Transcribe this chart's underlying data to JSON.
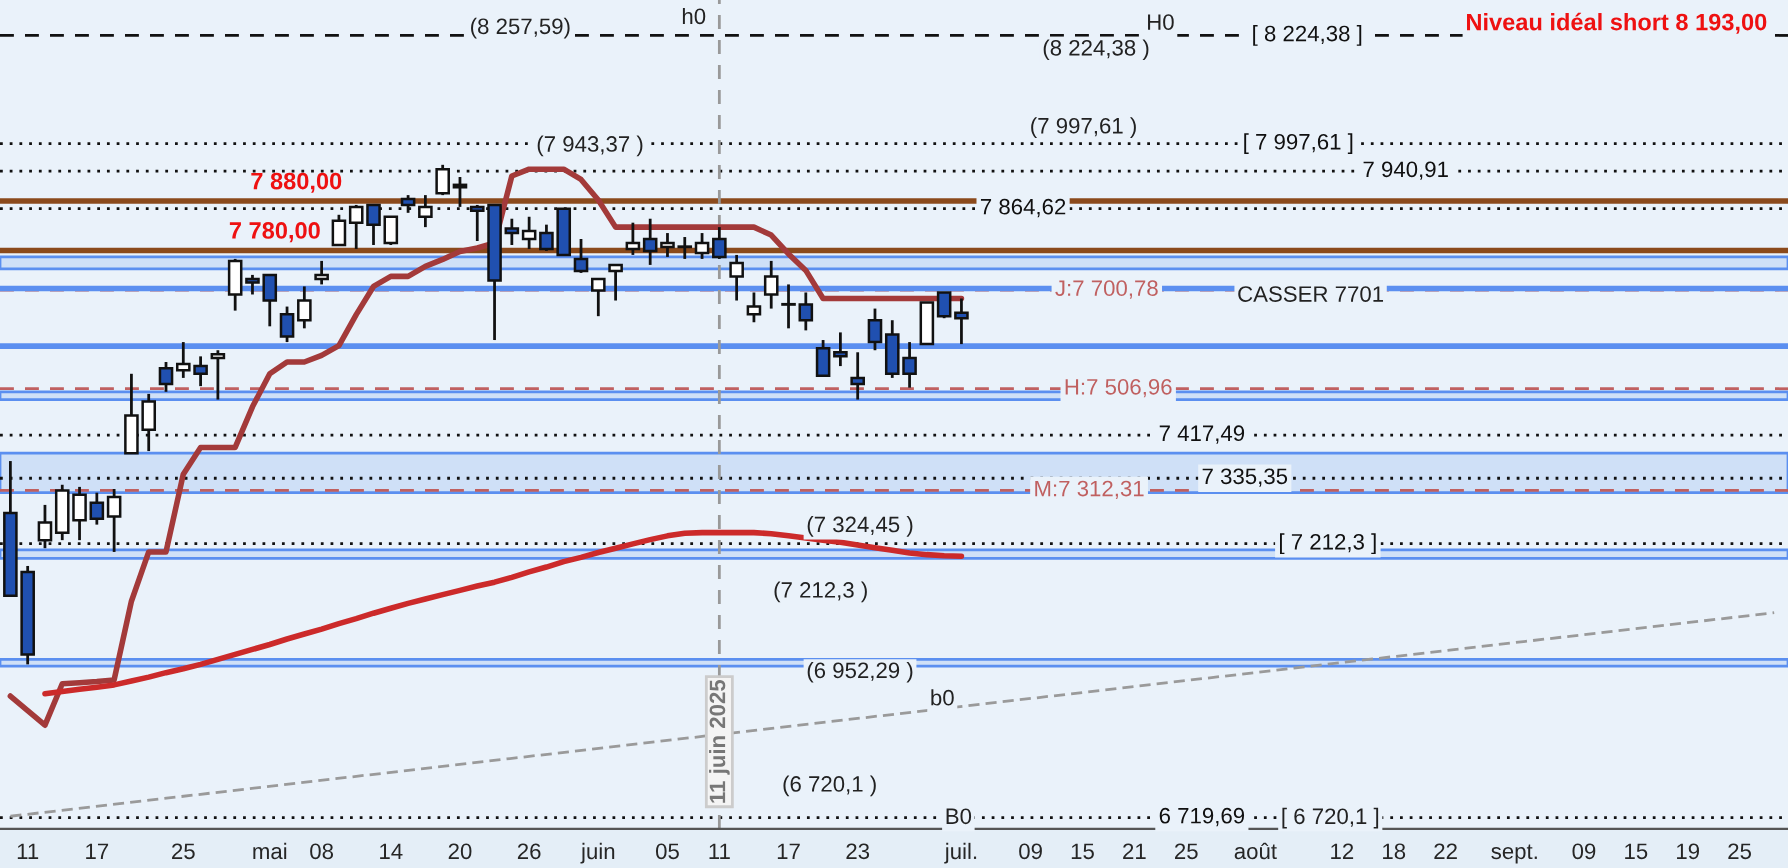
{
  "chart_data": {
    "type": "candlestick",
    "log": true,
    "grid": false,
    "tick_labels": "x",
    "ylim": [
      6700,
      8300
    ],
    "categories": [
      null,
      "11",
      null,
      null,
      null,
      "17",
      null,
      null,
      null,
      null,
      "25",
      null,
      null,
      null,
      null,
      "mai",
      null,
      null,
      "08",
      null,
      null,
      null,
      "14",
      null,
      null,
      null,
      "20",
      null,
      null,
      null,
      "26",
      null,
      null,
      null,
      "juin",
      null,
      null,
      null,
      "05",
      null,
      null,
      "11",
      null,
      null,
      null,
      "17",
      null,
      null,
      null,
      "23",
      null,
      null,
      null,
      null,
      null,
      "juil.",
      null,
      null,
      null,
      "09",
      null,
      null,
      "15",
      null,
      null,
      "21",
      null,
      null,
      "25",
      null,
      null,
      null,
      "août",
      null,
      null,
      null,
      null,
      "12",
      null,
      null,
      "18",
      null,
      null,
      "22",
      null,
      null,
      null,
      "sept.",
      null,
      null,
      null,
      "09",
      null,
      null,
      "15",
      null,
      null,
      "19",
      null,
      null,
      "25",
      null,
      null
    ],
    "ohlc": [
      [
        7270,
        7368,
        7116,
        7116
      ],
      [
        7160,
        7171,
        6991,
        7009
      ],
      [
        7219,
        7285,
        7204,
        7252
      ],
      [
        7233,
        7323,
        7219,
        7312
      ],
      [
        7256,
        7319,
        7219,
        7304
      ],
      [
        7289,
        7308,
        7248,
        7259
      ],
      [
        7263,
        7315,
        7197,
        7300
      ],
      [
        7383,
        7536,
        7383,
        7455
      ],
      [
        7428,
        7497,
        7387,
        7482
      ],
      [
        7547,
        7559,
        7501,
        7516
      ],
      [
        7543,
        7598,
        7528,
        7555
      ],
      [
        7551,
        7570,
        7512,
        7536
      ],
      [
        7567,
        7582,
        7486,
        7574
      ],
      [
        7692,
        7763,
        7660,
        7759
      ],
      [
        7723,
        7731,
        7692,
        7716
      ],
      [
        7731,
        7731,
        7629,
        7680
      ],
      [
        7653,
        7668,
        7598,
        7609
      ],
      [
        7641,
        7708,
        7625,
        7680
      ],
      [
        7723,
        7759,
        7712,
        7731
      ],
      [
        7791,
        7852,
        7791,
        7840
      ],
      [
        7836,
        7872,
        7783,
        7868
      ],
      [
        7872,
        7872,
        7791,
        7832
      ],
      [
        7795,
        7848,
        7791,
        7848
      ],
      [
        7884,
        7892,
        7856,
        7872
      ],
      [
        7848,
        7892,
        7827,
        7868
      ],
      [
        7896,
        7954,
        7892,
        7945
      ],
      [
        7913,
        7929,
        7868,
        7908
      ],
      [
        7868,
        7872,
        7799,
        7860
      ],
      [
        7872,
        7872,
        7602,
        7720
      ],
      [
        7824,
        7844,
        7791,
        7815
      ],
      [
        7803,
        7848,
        7783,
        7819
      ],
      [
        7815,
        7832,
        7779,
        7783
      ],
      [
        7864,
        7864,
        7771,
        7771
      ],
      [
        7763,
        7803,
        7735,
        7739
      ],
      [
        7700,
        7723,
        7649,
        7723
      ],
      [
        7739,
        7751,
        7680,
        7751
      ],
      [
        7783,
        7836,
        7771,
        7795
      ],
      [
        7803,
        7844,
        7751,
        7779
      ],
      [
        7787,
        7815,
        7767,
        7795
      ],
      [
        7787,
        7807,
        7763,
        7787
      ],
      [
        7775,
        7815,
        7763,
        7795
      ],
      [
        7803,
        7827,
        7763,
        7767
      ],
      [
        7728,
        7771,
        7680,
        7755
      ],
      [
        7653,
        7696,
        7637,
        7668
      ],
      [
        7692,
        7759,
        7664,
        7728
      ],
      [
        7672,
        7712,
        7625,
        7672
      ],
      [
        7672,
        7696,
        7621,
        7641
      ],
      [
        7586,
        7602,
        7532,
        7532
      ],
      [
        7578,
        7617,
        7551,
        7570
      ],
      [
        7528,
        7578,
        7486,
        7516
      ],
      [
        7641,
        7664,
        7582,
        7598
      ],
      [
        7613,
        7641,
        7528,
        7536
      ],
      [
        7567,
        7598,
        7509,
        7536
      ],
      [
        7594,
        7676,
        7594,
        7676
      ],
      [
        7696,
        7696,
        7645,
        7649
      ],
      [
        7656,
        7684,
        7594,
        7645
      ],
      null,
      null,
      null,
      null,
      null,
      null,
      null,
      null,
      null,
      null,
      null,
      null,
      null,
      null,
      null,
      null,
      null,
      null,
      null,
      null,
      null,
      null,
      null,
      null,
      null,
      null,
      null,
      null,
      null,
      null,
      null,
      null,
      null,
      null,
      null,
      null,
      null,
      null,
      null,
      null,
      null,
      null,
      null,
      null,
      null,
      null,
      null
    ],
    "colors": [
      "#2050b0",
      "#2050b0",
      "#ffffff",
      "#ffffff",
      "#ffffff",
      "#2050b0",
      "#ffffff",
      "#ffffff",
      "#ffffff",
      "#2050b0",
      "#ffffff",
      "#2050b0",
      "#ffffff",
      "#ffffff",
      "#2050b0",
      "#2050b0",
      "#2050b0",
      "#ffffff",
      "#ffffff",
      "#ffffff",
      "#ffffff",
      "#2050b0",
      "#ffffff",
      "#2050b0",
      "#ffffff",
      "#ffffff",
      "#2050b0",
      "#2050b0",
      "#2050b0",
      "#2050b0",
      "#ffffff",
      "#2050b0",
      "#2050b0",
      "#2050b0",
      "#ffffff",
      "#ffffff",
      "#ffffff",
      "#2050b0",
      "#ffffff",
      "#2050b0",
      "#ffffff",
      "#2050b0",
      "#ffffff",
      "#ffffff",
      "#ffffff",
      "#2050b0",
      "#2050b0",
      "#2050b0",
      "#2050b0",
      "#2050b0",
      "#2050b0",
      "#2050b0",
      "#2050b0",
      "#ffffff",
      "#2050b0",
      "#2050b0",
      null,
      null,
      null,
      null,
      null,
      null,
      null,
      null,
      null,
      null,
      null,
      null,
      null,
      null,
      null,
      null,
      null,
      null,
      null,
      null,
      null,
      null,
      null,
      null,
      null,
      null,
      null,
      null,
      null,
      null,
      null,
      null,
      null,
      null,
      null,
      null,
      null,
      null,
      null,
      null,
      null,
      null,
      null,
      null,
      null,
      null,
      null
    ],
    "series": [
      {
        "type": "line",
        "color": "#a33a3a",
        "values": [
          6934,
          6908,
          6882,
          6956,
          6958,
          6960,
          6963,
          7106,
          7197,
          7197,
          7343,
          7394,
          7394,
          7394,
          7472,
          7536,
          7559,
          7559,
          7572,
          7591,
          7652,
          7708,
          7728,
          7728,
          7748,
          7762,
          7778,
          7785,
          7795,
          7931,
          7945,
          7945,
          7945,
          7924,
          7882,
          7827,
          7827,
          7827,
          7827,
          7827,
          7827,
          7827,
          7827,
          7827,
          7811,
          7773,
          7740,
          7684,
          7684,
          7684,
          7684,
          7684,
          7684,
          7684,
          7684,
          7684,
          null,
          null,
          null,
          null,
          null,
          null,
          null,
          null,
          null,
          null,
          null,
          null,
          null,
          null,
          null,
          null,
          null,
          null,
          null,
          null,
          null,
          null,
          null,
          null,
          null,
          null,
          null,
          null,
          null,
          null,
          null,
          null,
          null,
          null,
          null,
          null,
          null,
          null,
          null,
          null,
          null,
          null,
          null,
          null,
          null,
          null,
          null
        ]
      },
      {
        "type": "line",
        "color": "#cc2a2a",
        "values": [
          null,
          null,
          6938,
          6942,
          6946,
          6950,
          6954,
          6961,
          6968,
          6976,
          6983,
          6991,
          7000,
          7009,
          7018,
          7027,
          7037,
          7046,
          7055,
          7065,
          7074,
          7084,
          7093,
          7102,
          7110,
          7118,
          7126,
          7134,
          7141,
          7150,
          7160,
          7169,
          7179,
          7187,
          7196,
          7204,
          7212,
          7220,
          7227,
          7232,
          7233,
          7233,
          7233,
          7233,
          7231,
          7227,
          7223,
          7219,
          7215,
          7210,
          7205,
          7200,
          7195,
          7192,
          7190,
          7189,
          null,
          null,
          null,
          null,
          null,
          null,
          null,
          null,
          null,
          null,
          null,
          null,
          null,
          null,
          null,
          null,
          null,
          null,
          null,
          null,
          null,
          null,
          null,
          null,
          null,
          null,
          null,
          null,
          null,
          null,
          null,
          null,
          null,
          null,
          null,
          null,
          null,
          null,
          null,
          null,
          null,
          null,
          null,
          null,
          null,
          null,
          null
        ]
      },
      {
        "type": "line",
        "color": "#9a9a9a",
        "line_style": "dashed",
        "values": [
          6722,
          null,
          null,
          null,
          null,
          null,
          null,
          null,
          null,
          null,
          null,
          null,
          null,
          null,
          null,
          null,
          null,
          null,
          null,
          null,
          null,
          null,
          null,
          null,
          null,
          null,
          null,
          null,
          null,
          null,
          null,
          null,
          null,
          null,
          null,
          null,
          null,
          null,
          null,
          null,
          null,
          null,
          null,
          null,
          null,
          null,
          null,
          null,
          null,
          null,
          null,
          null,
          null,
          null,
          null,
          null,
          null,
          null,
          null,
          null,
          null,
          null,
          null,
          null,
          null,
          null,
          null,
          null,
          null,
          null,
          null,
          null,
          null,
          null,
          null,
          null,
          null,
          null,
          null,
          null,
          null,
          null,
          null,
          null,
          null,
          null,
          null,
          null,
          null,
          null,
          null,
          null,
          null,
          null,
          null,
          null,
          null,
          null,
          null,
          null,
          null,
          null,
          7085
        ]
      }
    ],
    "bands": [
      {
        "axis": "y",
        "from": 7743,
        "to": 7767,
        "color": "#cfe0f7"
      },
      {
        "axis": "y",
        "from": 7486,
        "to": 7501,
        "color": "#cfe0f7"
      },
      {
        "axis": "y",
        "from": 7308,
        "to": 7383,
        "color": "#cfe0f7"
      },
      {
        "axis": "y",
        "from": 7185,
        "to": 7201,
        "color": "#cfe0f7"
      },
      {
        "axis": "y",
        "from": 6988,
        "to": 7000,
        "color": "#cfe0f7"
      }
    ],
    "ref_lines": [
      {
        "axis": "y",
        "value": 8224.38,
        "label": "[ 8 224,38 ]",
        "color": "#111111",
        "line_style": "dashed"
      },
      {
        "axis": "y",
        "value": 7997.61,
        "label": "[ 7 997,61 ]",
        "color": "#111111",
        "line_style": "dotted"
      },
      {
        "axis": "y",
        "value": 7940.91,
        "label": "7 940,91",
        "color": "#111111",
        "line_style": "dotted"
      },
      {
        "axis": "y",
        "value": 7880.0,
        "label": "7 880,00",
        "color": "#8b4a1c",
        "line_style": "solid"
      },
      {
        "axis": "y",
        "value": 7864.62,
        "label": "7 864,62",
        "color": "#111111",
        "line_style": "dotted"
      },
      {
        "axis": "y",
        "value": 7780.0,
        "label": "7 780,00",
        "color": "#8b4a1c",
        "line_style": "solid"
      },
      {
        "axis": "y",
        "value": 7700.78,
        "label": "J:7 700,78",
        "color": "#c06060",
        "line_style": "dashed"
      },
      {
        "axis": "y",
        "value": 7506.96,
        "label": "H:7 506,96",
        "color": "#c06060",
        "line_style": "dashed"
      },
      {
        "axis": "y",
        "value": 7417.49,
        "label": "7 417,49",
        "color": "#111111",
        "line_style": "dotted"
      },
      {
        "axis": "y",
        "value": 7335.35,
        "label": "7 335,35",
        "color": "#111111",
        "line_style": "dotted"
      },
      {
        "axis": "y",
        "value": 7312.31,
        "label": "M:7 312,31",
        "color": "#c06060",
        "line_style": "dashed"
      },
      {
        "axis": "y",
        "value": 7212.3,
        "label": "[ 7 212,3 ]",
        "color": "#111111",
        "line_style": "dotted"
      },
      {
        "axis": "y",
        "value": 6719.69,
        "label": "6 719,69",
        "color": "#111111",
        "line_style": "dotted"
      },
      {
        "axis": "y",
        "value": 7704,
        "label": null,
        "color": "#5b8ff0",
        "line_style": "solid"
      },
      {
        "axis": "y",
        "value": 7590,
        "label": null,
        "color": "#5b8ff0",
        "line_style": "solid"
      }
    ],
    "annotations": [
      "(8 257,59)",
      "(7 943,37 )",
      "h0",
      "(8 224,38 )",
      "H0",
      "(7 997,61 )",
      "CASSER 7701",
      "(7 324,45 )",
      "(7 212,3 )",
      "(6 952,29 )",
      "b0",
      "(6 720,1 )",
      "B0",
      "Niveau idéal short 8 193,00",
      "[ 6 720,1 ]",
      "11 juin 2025"
    ]
  }
}
